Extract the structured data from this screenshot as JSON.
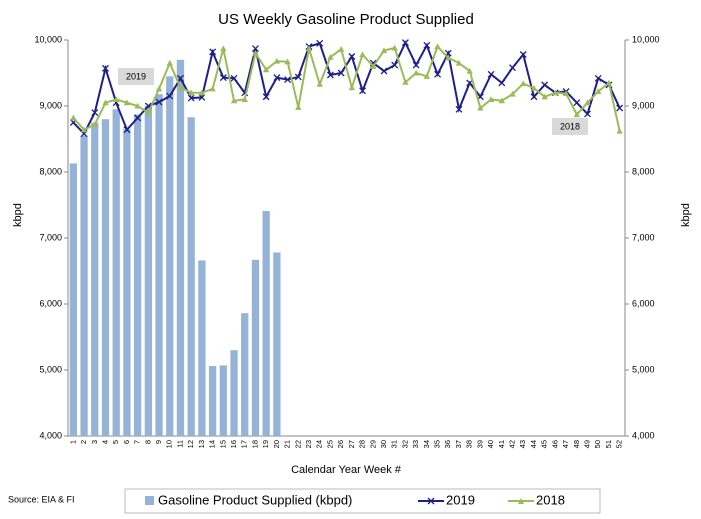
{
  "chart_data": {
    "type": "bar_line",
    "title": "US Weekly Gasoline Product Supplied",
    "x_label": "Calendar Year Week #",
    "y_label": "kbpd",
    "y2_label": "kbpd",
    "source": "Source: EIA & FI",
    "annotations": [
      "2019",
      "2018"
    ],
    "categories": [
      "1",
      "2",
      "3",
      "4",
      "5",
      "6",
      "7",
      "8",
      "9",
      "10",
      "11",
      "12",
      "13",
      "14",
      "15",
      "16",
      "17",
      "18",
      "19",
      "20",
      "21",
      "22",
      "23",
      "24",
      "25",
      "26",
      "27",
      "28",
      "29",
      "30",
      "31",
      "32",
      "33",
      "34",
      "35",
      "36",
      "37",
      "38",
      "39",
      "40",
      "41",
      "42",
      "43",
      "44",
      "45",
      "46",
      "47",
      "48",
      "49",
      "50",
      "51",
      "52"
    ],
    "ylim": [
      4000,
      10000
    ],
    "yticks": [
      {
        "value": 4000,
        "label": "4,000"
      },
      {
        "value": 5000,
        "label": "5,000"
      },
      {
        "value": 6000,
        "label": "6,000"
      },
      {
        "value": 7000,
        "label": "7,000"
      },
      {
        "value": 8000,
        "label": "8,000"
      },
      {
        "value": 9000,
        "label": "9,000"
      },
      {
        "value": 10000,
        "label": "10,000"
      }
    ],
    "y2lim": [
      4000,
      10000
    ],
    "y2ticks": [
      {
        "value": 4000,
        "label": "4,000"
      },
      {
        "value": 5000,
        "label": "5,000"
      },
      {
        "value": 6000,
        "label": "6,000"
      },
      {
        "value": 7000,
        "label": "7,000"
      },
      {
        "value": 8000,
        "label": "8,000"
      },
      {
        "value": 9000,
        "label": "9,000"
      },
      {
        "value": 10000,
        "label": "10,000"
      }
    ],
    "series": [
      {
        "name": "Gasoline Product Supplied (kbpd)",
        "type": "bar",
        "color": "#95b3d7",
        "values": [
          8130,
          8550,
          8750,
          8800,
          8950,
          8650,
          8870,
          9000,
          9180,
          9450,
          9700,
          8830,
          6660,
          5060,
          5070,
          5300,
          5860,
          6670,
          7410,
          6780,
          null,
          null,
          null,
          null,
          null,
          null,
          null,
          null,
          null,
          null,
          null,
          null,
          null,
          null,
          null,
          null,
          null,
          null,
          null,
          null,
          null,
          null,
          null,
          null,
          null,
          null,
          null,
          null,
          null,
          null,
          null,
          null
        ]
      },
      {
        "name": "2019",
        "type": "line",
        "marker": "x",
        "color": "#1f1f8c",
        "values": [
          8750,
          8580,
          8900,
          9570,
          9050,
          8640,
          8820,
          9000,
          9060,
          9150,
          9420,
          9120,
          9130,
          9820,
          9430,
          9420,
          9200,
          9870,
          9140,
          9430,
          9400,
          9440,
          9900,
          9950,
          9470,
          9500,
          9750,
          9230,
          9650,
          9530,
          9620,
          9960,
          9620,
          9920,
          9480,
          9800,
          8950,
          9350,
          9140,
          9480,
          9350,
          9580,
          9780,
          9140,
          9320,
          9200,
          9220,
          9050,
          8880,
          9420,
          9320,
          8970
        ]
      },
      {
        "name": "2018",
        "type": "line",
        "marker": "triangle",
        "color": "#9bbb59",
        "values": [
          8820,
          8640,
          8720,
          9050,
          9100,
          9050,
          9000,
          8900,
          9260,
          9650,
          9280,
          9200,
          9200,
          9260,
          9870,
          9080,
          9100,
          9800,
          9550,
          9680,
          9670,
          8980,
          9870,
          9330,
          9740,
          9860,
          9280,
          9780,
          9600,
          9840,
          9880,
          9360,
          9500,
          9450,
          9900,
          9730,
          9650,
          9530,
          8970,
          9100,
          9080,
          9180,
          9340,
          9270,
          9140,
          9200,
          9190,
          8870,
          9050,
          9220,
          9350,
          8620
        ]
      }
    ]
  }
}
